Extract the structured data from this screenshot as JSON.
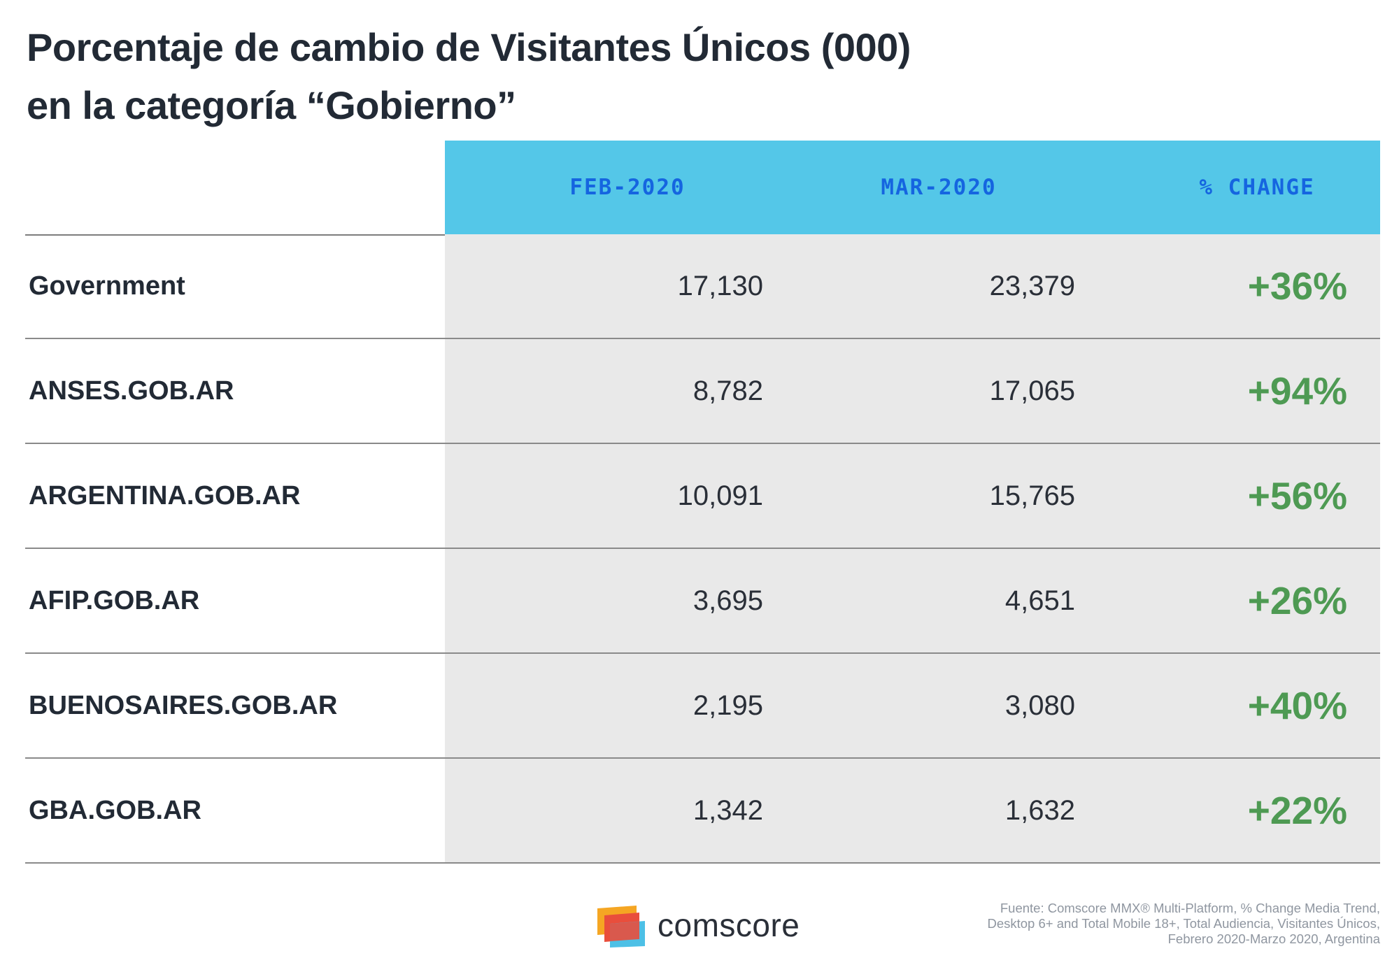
{
  "title_line1": "Porcentaje de cambio de Visitantes Únicos (000)",
  "title_line2": "en la categoría “Gobierno”",
  "chart_data": {
    "type": "table",
    "columns": [
      "FEB-2020",
      "MAR-2020",
      "% CHANGE"
    ],
    "rows": [
      {
        "label": "Government",
        "feb": "17,130",
        "mar": "23,379",
        "change": "+36%"
      },
      {
        "label": "ANSES.GOB.AR",
        "feb": "8,782",
        "mar": "17,065",
        "change": "+94%"
      },
      {
        "label": "ARGENTINA.GOB.AR",
        "feb": "10,091",
        "mar": "15,765",
        "change": "+56%"
      },
      {
        "label": "AFIP.GOB.AR",
        "feb": "3,695",
        "mar": "4,651",
        "change": "+26%"
      },
      {
        "label": "BUENOSAIRES.GOB.AR",
        "feb": "2,195",
        "mar": "3,080",
        "change": "+40%"
      },
      {
        "label": "GBA.GOB.AR",
        "feb": "1,342",
        "mar": "1,632",
        "change": "+22%"
      }
    ],
    "colors": {
      "header_bg": "#54c7e8",
      "header_text": "#1565e0",
      "shade": "#e9e9e9",
      "positive": "#4e9a53"
    }
  },
  "logo_text": "comscore",
  "source_lines": [
    "Fuente: Comscore MMX® Multi-Platform, % Change Media Trend,",
    "Desktop 6+ and Total Mobile 18+, Total Audiencia, Visitantes Únicos,",
    "Febrero 2020-Marzo 2020, Argentina"
  ]
}
